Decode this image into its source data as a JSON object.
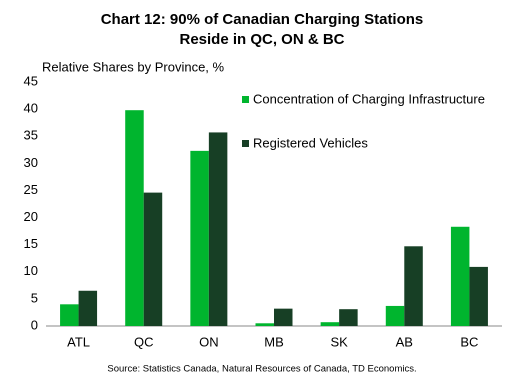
{
  "chart_data": {
    "type": "bar",
    "title": "Chart 12: 90% of Canadian Charging Stations",
    "subtitle": "Reside in QC, ON & BC",
    "y_label": "Relative Shares by Province, %",
    "source": "Source: Statistics Canada, Natural Resources of Canada, TD Economics.",
    "categories": [
      "ATL",
      "QC",
      "ON",
      "MB",
      "SK",
      "AB",
      "BC"
    ],
    "series": [
      {
        "name": "Concentration of Charging Infrastructure",
        "color": "#00b52e",
        "values": [
          4.0,
          39.8,
          32.3,
          0.5,
          0.7,
          3.7,
          18.3
        ]
      },
      {
        "name": "Registered Vehicles",
        "color": "#173f25",
        "values": [
          6.5,
          24.6,
          35.7,
          3.2,
          3.1,
          14.7,
          10.9
        ]
      }
    ],
    "ylim": [
      0,
      45
    ],
    "yticks": [
      0,
      5,
      10,
      15,
      20,
      25,
      30,
      35,
      40,
      45
    ],
    "grid": false
  }
}
